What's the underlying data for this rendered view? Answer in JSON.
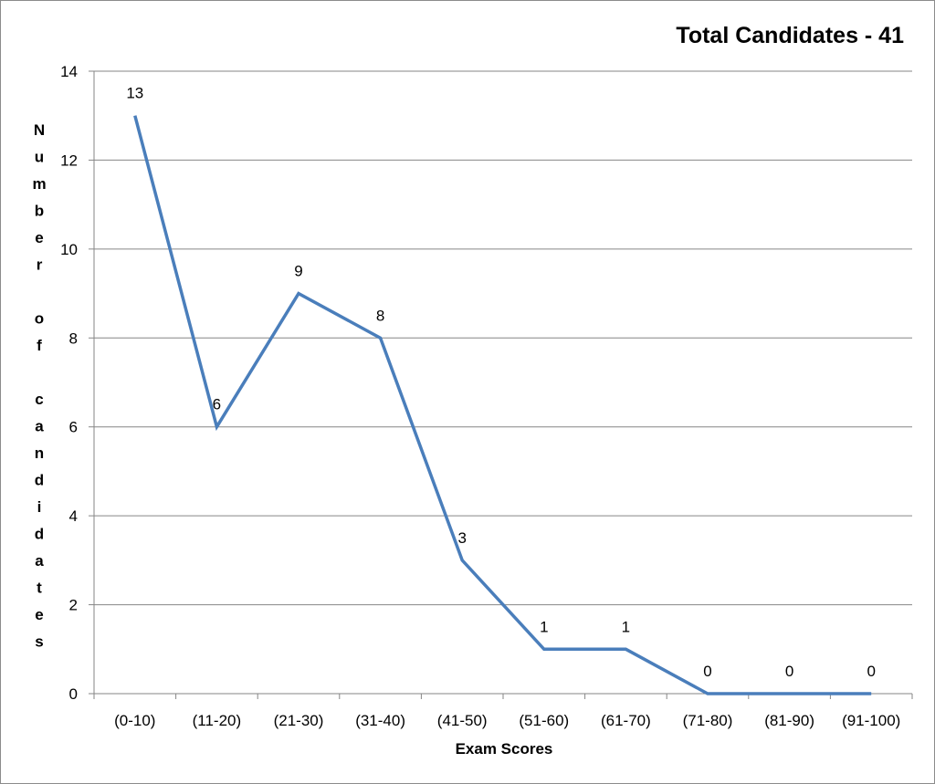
{
  "chart_data": {
    "type": "line",
    "title": "Total Candidates - 41",
    "xlabel": "Exam Scores",
    "ylabel": "Number of candidates",
    "categories": [
      "(0-10)",
      "(11-20)",
      "(21-30)",
      "(31-40)",
      "(41-50)",
      "(51-60)",
      "(61-70)",
      "(71-80)",
      "(81-90)",
      "(91-100)"
    ],
    "values": [
      13,
      6,
      9,
      8,
      3,
      1,
      1,
      0,
      0,
      0
    ],
    "ylim": [
      0,
      14
    ],
    "yticks": [
      0,
      2,
      4,
      6,
      8,
      10,
      12,
      14
    ],
    "grid": true,
    "legend": "none",
    "line_color": "#4a7ebb",
    "gridline_color": "#868686"
  }
}
